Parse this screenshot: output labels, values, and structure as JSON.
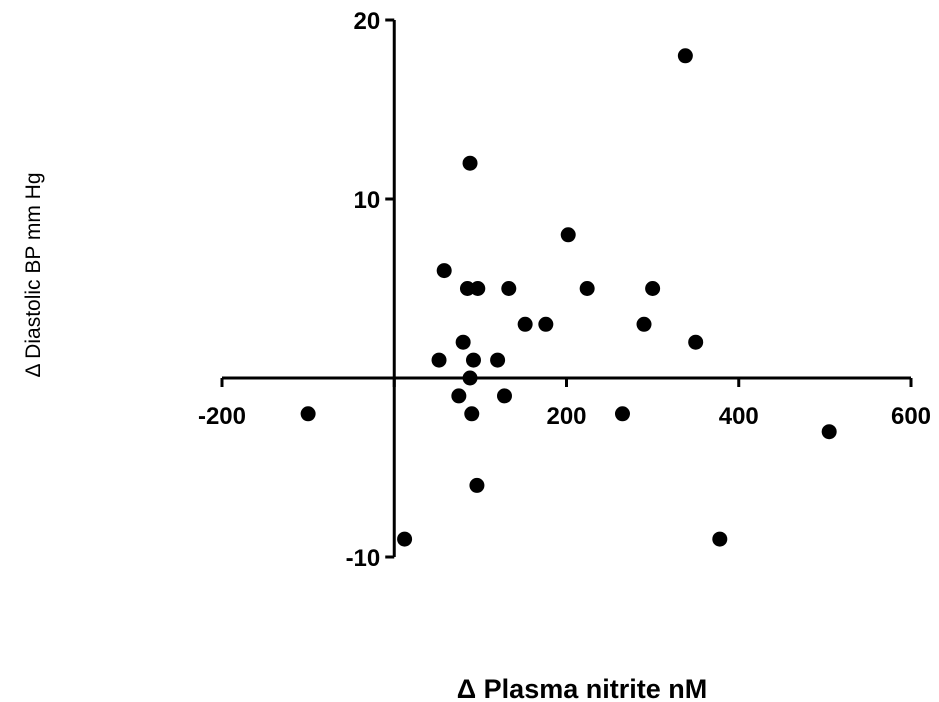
{
  "chart_data": {
    "type": "scatter",
    "xlabel": "Δ Plasma nitrite nM",
    "ylabel": "Δ Diastolic BP mm Hg",
    "xlim": [
      -200,
      600
    ],
    "ylim": [
      -10,
      20
    ],
    "x_ticks": [
      -200,
      0,
      200,
      400,
      600
    ],
    "x_tick_labels": [
      "-200",
      "",
      "200",
      "400",
      "600"
    ],
    "y_ticks": [
      -10,
      0,
      10,
      20
    ],
    "y_tick_labels": [
      "-10",
      "",
      "10",
      "20"
    ],
    "grid": false,
    "marker_color": "#000000",
    "series": [
      {
        "points": [
          {
            "x": -100,
            "y": -2
          },
          {
            "x": 12,
            "y": -9
          },
          {
            "x": 52,
            "y": 1
          },
          {
            "x": 58,
            "y": 6
          },
          {
            "x": 75,
            "y": -1
          },
          {
            "x": 80,
            "y": 2
          },
          {
            "x": 85,
            "y": 5
          },
          {
            "x": 88,
            "y": 0
          },
          {
            "x": 88,
            "y": 12
          },
          {
            "x": 90,
            "y": -2
          },
          {
            "x": 92,
            "y": 1
          },
          {
            "x": 96,
            "y": -6
          },
          {
            "x": 97,
            "y": 5
          },
          {
            "x": 120,
            "y": 1
          },
          {
            "x": 128,
            "y": -1
          },
          {
            "x": 133,
            "y": 5
          },
          {
            "x": 152,
            "y": 3
          },
          {
            "x": 176,
            "y": 3
          },
          {
            "x": 202,
            "y": 8
          },
          {
            "x": 224,
            "y": 5
          },
          {
            "x": 265,
            "y": -2
          },
          {
            "x": 290,
            "y": 3
          },
          {
            "x": 300,
            "y": 5
          },
          {
            "x": 338,
            "y": 18
          },
          {
            "x": 350,
            "y": 2
          },
          {
            "x": 378,
            "y": -9
          },
          {
            "x": 505,
            "y": -3
          }
        ]
      }
    ]
  }
}
